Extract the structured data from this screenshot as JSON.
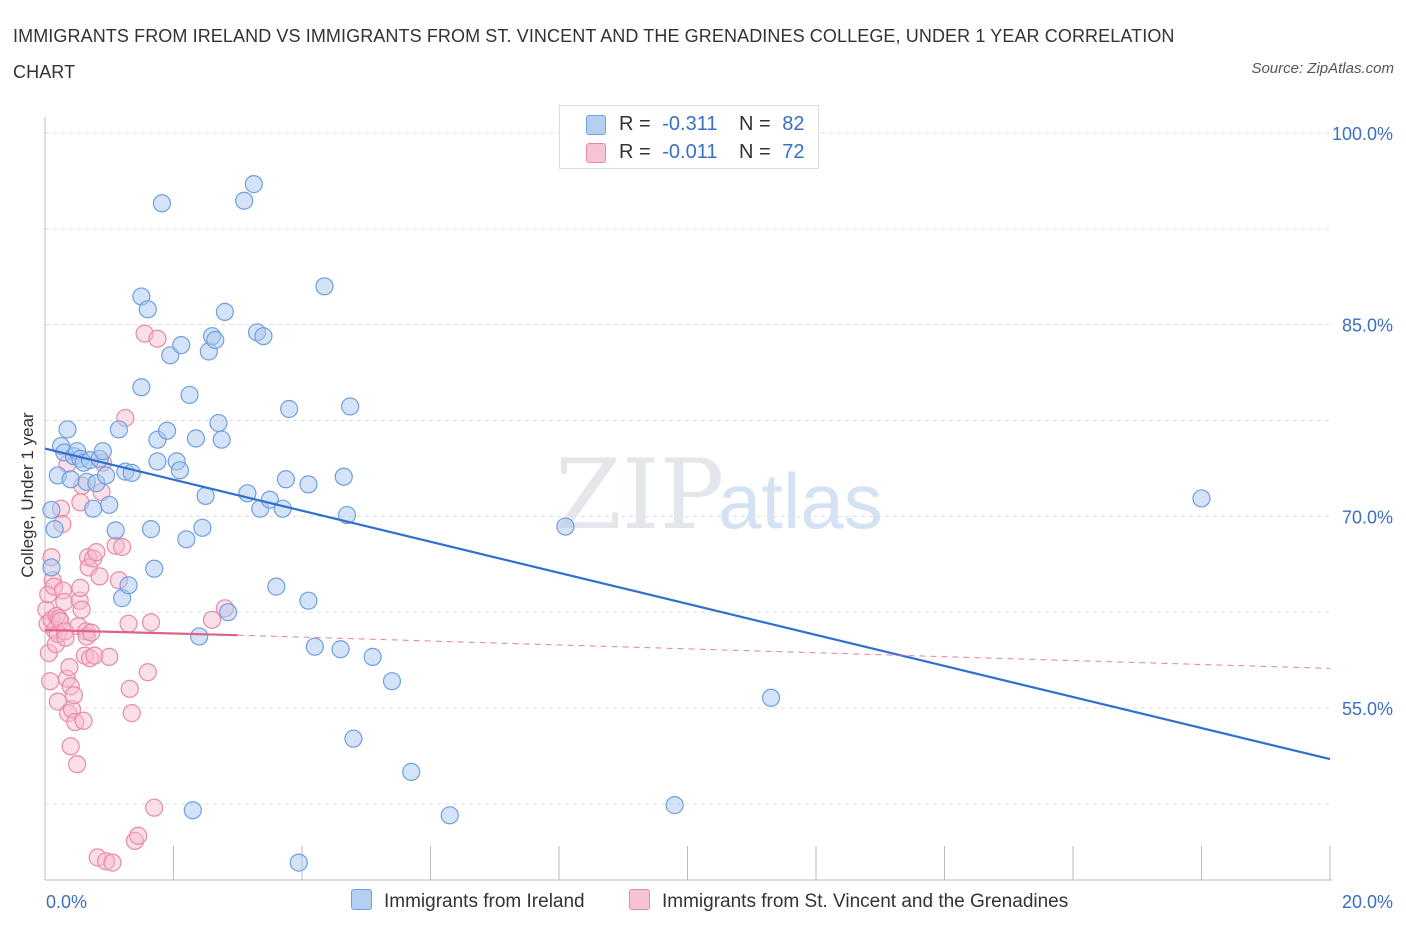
{
  "title": "IMMIGRANTS FROM IRELAND VS IMMIGRANTS FROM ST. VINCENT AND THE GRENADINES COLLEGE, UNDER 1 YEAR CORRELATION CHART",
  "source": "Source: ZipAtlas.com",
  "watermark": {
    "zip": "ZIP",
    "atlas": "atlas"
  },
  "legend": {
    "ireland": {
      "r_label": "R =",
      "r_value": "-0.311",
      "n_label": "N =",
      "n_value": "82"
    },
    "stvincent": {
      "r_label": "R =",
      "r_value": "-0.011",
      "n_label": "N =",
      "n_value": "72"
    }
  },
  "bottom_legend": {
    "ireland": "Immigrants from Ireland",
    "stvincent": "Immigrants from St. Vincent and the Grenadines"
  },
  "colors": {
    "ireland_fill": "#a9c8f0",
    "ireland_stroke": "#6fa0dc",
    "ireland_line": "#2f6fcf",
    "stvincent_fill": "#f6b9cb",
    "stvincent_stroke": "#e88aa6",
    "stvincent_line": "#e0608a",
    "axis_label": "#3a6fc4",
    "grid": "#dddddd"
  },
  "chart_data": {
    "type": "scatter",
    "title": "IMMIGRANTS FROM IRELAND VS IMMIGRANTS FROM ST. VINCENT AND THE GRENADINES COLLEGE, UNDER 1 YEAR CORRELATION CHART",
    "xlabel": "",
    "ylabel": "College, Under 1 year",
    "xlim": [
      0,
      20
    ],
    "ylim": [
      40,
      100
    ],
    "x_tick_labels": [
      "0.0%",
      "20.0%"
    ],
    "y_ticks": [
      100,
      85,
      70,
      55
    ],
    "y_tick_labels": [
      "100.0%",
      "85.0%",
      "70.0%",
      "55.0%"
    ],
    "grid": true,
    "series": [
      {
        "name": "Immigrants from Ireland",
        "R": -0.311,
        "N": 82,
        "trend": {
          "x": [
            0,
            20
          ],
          "y": [
            75.3,
            51.0
          ],
          "style": "solid"
        },
        "points": [
          [
            0.1,
            66.0
          ],
          [
            0.1,
            70.5
          ],
          [
            0.15,
            69.0
          ],
          [
            0.2,
            73.2
          ],
          [
            0.25,
            75.5
          ],
          [
            0.3,
            75.0
          ],
          [
            0.35,
            76.8
          ],
          [
            0.4,
            72.9
          ],
          [
            0.45,
            74.7
          ],
          [
            0.5,
            75.1
          ],
          [
            0.55,
            74.5
          ],
          [
            0.6,
            74.2
          ],
          [
            0.65,
            72.7
          ],
          [
            0.7,
            74.4
          ],
          [
            0.75,
            70.6
          ],
          [
            0.8,
            72.6
          ],
          [
            0.85,
            74.5
          ],
          [
            0.9,
            75.1
          ],
          [
            0.95,
            73.2
          ],
          [
            1.0,
            70.9
          ],
          [
            1.1,
            68.9
          ],
          [
            1.15,
            76.8
          ],
          [
            1.2,
            63.6
          ],
          [
            1.25,
            73.5
          ],
          [
            1.3,
            64.6
          ],
          [
            1.35,
            73.4
          ],
          [
            1.5,
            87.2
          ],
          [
            1.5,
            80.1
          ],
          [
            1.6,
            86.2
          ],
          [
            1.65,
            69.0
          ],
          [
            1.7,
            65.9
          ],
          [
            1.75,
            76.0
          ],
          [
            1.75,
            74.3
          ],
          [
            1.82,
            94.5
          ],
          [
            1.9,
            76.7
          ],
          [
            1.95,
            82.6
          ],
          [
            2.05,
            74.3
          ],
          [
            2.1,
            73.6
          ],
          [
            2.12,
            83.4
          ],
          [
            2.2,
            68.2
          ],
          [
            2.25,
            79.5
          ],
          [
            2.35,
            76.1
          ],
          [
            2.4,
            60.6
          ],
          [
            2.45,
            69.1
          ],
          [
            2.5,
            71.6
          ],
          [
            2.55,
            82.9
          ],
          [
            2.6,
            84.1
          ],
          [
            2.65,
            83.8
          ],
          [
            2.7,
            77.3
          ],
          [
            2.75,
            76.0
          ],
          [
            2.8,
            86.0
          ],
          [
            2.85,
            62.5
          ],
          [
            3.1,
            94.7
          ],
          [
            3.15,
            71.8
          ],
          [
            3.25,
            96.0
          ],
          [
            3.3,
            84.4
          ],
          [
            3.35,
            70.6
          ],
          [
            3.4,
            84.1
          ],
          [
            3.5,
            71.3
          ],
          [
            3.6,
            64.5
          ],
          [
            3.7,
            70.6
          ],
          [
            3.75,
            72.9
          ],
          [
            3.8,
            78.4
          ],
          [
            3.95,
            42.9
          ],
          [
            4.1,
            72.5
          ],
          [
            4.1,
            63.4
          ],
          [
            4.2,
            59.8
          ],
          [
            4.35,
            88.0
          ],
          [
            4.6,
            59.6
          ],
          [
            4.65,
            73.1
          ],
          [
            4.7,
            70.1
          ],
          [
            4.75,
            78.6
          ],
          [
            4.8,
            52.6
          ],
          [
            5.1,
            59.0
          ],
          [
            5.4,
            57.1
          ],
          [
            5.7,
            50.0
          ],
          [
            6.3,
            46.6
          ],
          [
            8.1,
            69.2
          ],
          [
            9.8,
            47.4
          ],
          [
            11.3,
            55.8
          ],
          [
            18.0,
            71.4
          ],
          [
            2.3,
            47.0
          ]
        ]
      },
      {
        "name": "Immigrants from St. Vincent and the Grenadines",
        "R": -0.011,
        "N": 72,
        "trend": {
          "x": [
            0,
            3.0
          ],
          "y": [
            61.1,
            60.7
          ],
          "style": "solid",
          "dashed_extension": {
            "x": [
              3.0,
              20
            ],
            "y": [
              60.7,
              58.1
            ]
          }
        },
        "points": [
          [
            0.02,
            62.7
          ],
          [
            0.04,
            61.6
          ],
          [
            0.05,
            63.9
          ],
          [
            0.06,
            59.3
          ],
          [
            0.08,
            57.1
          ],
          [
            0.1,
            61.9
          ],
          [
            0.1,
            66.8
          ],
          [
            0.12,
            65.0
          ],
          [
            0.14,
            64.5
          ],
          [
            0.15,
            61.1
          ],
          [
            0.17,
            60.0
          ],
          [
            0.18,
            62.2
          ],
          [
            0.2,
            60.8
          ],
          [
            0.2,
            55.5
          ],
          [
            0.22,
            62.0
          ],
          [
            0.24,
            61.8
          ],
          [
            0.25,
            70.6
          ],
          [
            0.27,
            69.4
          ],
          [
            0.28,
            64.2
          ],
          [
            0.3,
            63.3
          ],
          [
            0.31,
            61.0
          ],
          [
            0.32,
            60.5
          ],
          [
            0.34,
            57.3
          ],
          [
            0.35,
            74.1
          ],
          [
            0.36,
            54.6
          ],
          [
            0.38,
            58.2
          ],
          [
            0.4,
            56.7
          ],
          [
            0.4,
            52.0
          ],
          [
            0.42,
            54.9
          ],
          [
            0.45,
            56.0
          ],
          [
            0.47,
            53.9
          ],
          [
            0.5,
            50.6
          ],
          [
            0.52,
            61.4
          ],
          [
            0.54,
            63.4
          ],
          [
            0.55,
            64.4
          ],
          [
            0.55,
            71.1
          ],
          [
            0.57,
            62.7
          ],
          [
            0.58,
            72.4
          ],
          [
            0.6,
            54.0
          ],
          [
            0.62,
            59.1
          ],
          [
            0.64,
            61.0
          ],
          [
            0.65,
            60.6
          ],
          [
            0.67,
            66.8
          ],
          [
            0.68,
            66.0
          ],
          [
            0.7,
            58.9
          ],
          [
            0.72,
            60.9
          ],
          [
            0.75,
            66.7
          ],
          [
            0.77,
            59.1
          ],
          [
            0.8,
            67.2
          ],
          [
            0.82,
            43.3
          ],
          [
            0.85,
            65.3
          ],
          [
            0.88,
            71.9
          ],
          [
            0.9,
            74.2
          ],
          [
            0.95,
            43.0
          ],
          [
            1.0,
            59.0
          ],
          [
            1.05,
            42.9
          ],
          [
            1.1,
            67.7
          ],
          [
            1.15,
            65.0
          ],
          [
            1.2,
            67.6
          ],
          [
            1.25,
            77.7
          ],
          [
            1.3,
            61.6
          ],
          [
            1.32,
            56.5
          ],
          [
            1.35,
            54.6
          ],
          [
            1.4,
            44.6
          ],
          [
            1.45,
            45.0
          ],
          [
            1.55,
            84.3
          ],
          [
            1.6,
            57.8
          ],
          [
            1.65,
            61.7
          ],
          [
            1.7,
            47.2
          ],
          [
            1.75,
            83.9
          ],
          [
            2.6,
            61.9
          ],
          [
            2.8,
            62.8
          ]
        ]
      }
    ]
  }
}
